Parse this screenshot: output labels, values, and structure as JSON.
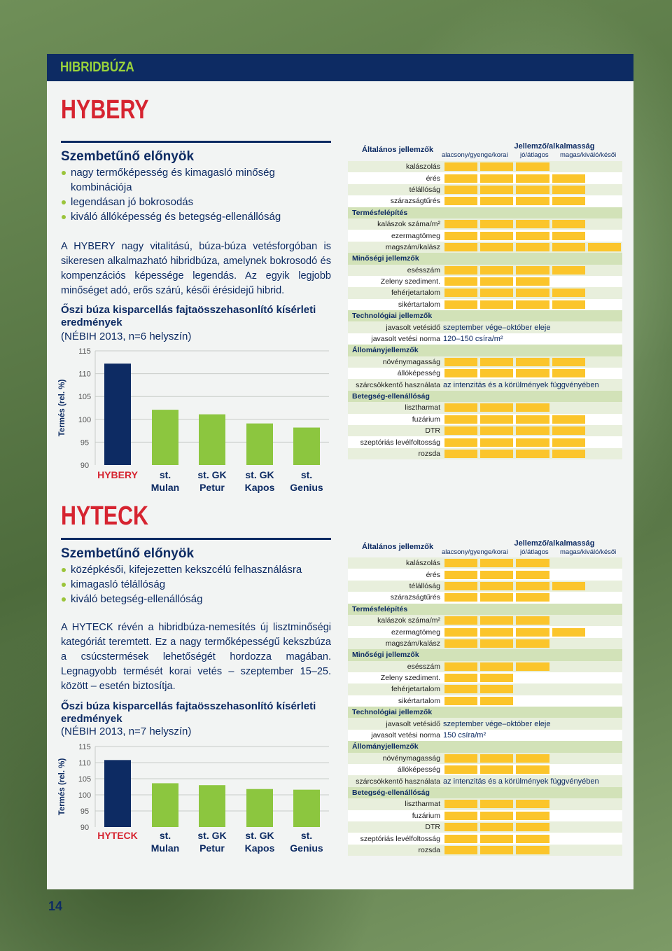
{
  "section_label": "HIBRIDBÚZA",
  "page_number": "14",
  "table_header": {
    "general": "Általános jellemzők",
    "characteristic": "Jellemző/alkalmasság",
    "scale": [
      "alacsony/gyenge/korai",
      "jó/átlagos",
      "magas/kiváló/késői"
    ]
  },
  "colors": {
    "navy": "#0d2b63",
    "red": "#d62430",
    "green": "#8cc63f",
    "yellow": "#fbc52b"
  },
  "products": [
    {
      "name": "HYBERY",
      "advantages_title": "Szembetűnő előnyök",
      "advantages": [
        "nagy termőképesség és kimagasló minőség kombinációja",
        "legendásan jó bokrosodás",
        "kiváló állóképesség és betegség-ellenállóság"
      ],
      "description": "A HYBERY nagy vitalitású, búza-búza vetésforgóban is sikeresen alkalmazható hibridbúza, amelynek bokrosodó és kompenzációs képessége legendás. Az egyik legjobb minőséget adó, erős szárú, késői érésidejű hibrid.",
      "chart_title": "Őszi búza kisparcellás fajtaösszehasonlító kísérleti eredmények",
      "chart_subtitle": "(NÉBIH 2013, n=6 helyszín)",
      "traits": [
        {
          "label": "kalászolás",
          "level": 3
        },
        {
          "label": "érés",
          "level": 4
        },
        {
          "label": "télállóság",
          "level": 4
        },
        {
          "label": "szárazságtűrés",
          "level": 4
        },
        {
          "label": "Termésfelépítés",
          "section": true
        },
        {
          "label": "kalászok száma/m²",
          "level": 4
        },
        {
          "label": "ezermagtömeg",
          "level": 4
        },
        {
          "label": "magszám/kalász",
          "level": 5
        },
        {
          "label": "Minőségi jellemzők",
          "section": true
        },
        {
          "label": "esésszám",
          "level": 4
        },
        {
          "label": "Zeleny szediment.",
          "level": 3
        },
        {
          "label": "fehérjetartalom",
          "level": 4
        },
        {
          "label": "sikértartalom",
          "level": 4
        },
        {
          "label": "Technológiai jellemzők",
          "section": true
        },
        {
          "label": "javasolt vetésidő",
          "text": "szeptember vége–október eleje"
        },
        {
          "label": "javasolt vetési norma",
          "text": "120–150 csíra/m²"
        },
        {
          "label": "Állományjellemzők",
          "section": true
        },
        {
          "label": "növénymagasság",
          "level": 4
        },
        {
          "label": "állóképesség",
          "level": 4
        },
        {
          "label": "szárcsökkentő használata",
          "text": "az intenzitás és a körülmények függvényében"
        },
        {
          "label": "Betegség-ellenállóság",
          "section": true
        },
        {
          "label": "lisztharmat",
          "level": 3
        },
        {
          "label": "fuzárium",
          "level": 4
        },
        {
          "label": "DTR",
          "level": 4
        },
        {
          "label": "szeptóriás levélfoltosság",
          "level": 4
        },
        {
          "label": "rozsda",
          "level": 4
        }
      ]
    },
    {
      "name": "HYTECK",
      "advantages_title": "Szembetűnő előnyök",
      "advantages": [
        "középkésői, kifejezetten kekszcélú felhasználásra",
        "kimagasló télállóság",
        "kiváló betegség-ellenállóság"
      ],
      "description": "A HYTECK révén a hibridbúza-nemesítés új lisztminőségi kategóriát teremtett. Ez a nagy termőképességű kekszbúza a csúcstermések lehetőségét hordozza magában. Legnagyobb termését korai vetés – szeptember 15–25. között – esetén biztosítja.",
      "chart_title": "Őszi búza kisparcellás fajtaösszehasonlító kísérleti eredmények",
      "chart_subtitle": "(NÉBIH 2013, n=7 helyszín)",
      "traits": [
        {
          "label": "kalászolás",
          "level": 3
        },
        {
          "label": "érés",
          "level": 3
        },
        {
          "label": "télállóság",
          "level": 4
        },
        {
          "label": "szárazságtűrés",
          "level": 3
        },
        {
          "label": "Termésfelépítés",
          "section": true
        },
        {
          "label": "kalászok száma/m²",
          "level": 3
        },
        {
          "label": "ezermagtömeg",
          "level": 4
        },
        {
          "label": "magszám/kalász",
          "level": 3
        },
        {
          "label": "Minőségi jellemzők",
          "section": true
        },
        {
          "label": "esésszám",
          "level": 3
        },
        {
          "label": "Zeleny szediment.",
          "level": 2
        },
        {
          "label": "fehérjetartalom",
          "level": 2
        },
        {
          "label": "sikértartalom",
          "level": 2
        },
        {
          "label": "Technológiai jellemzők",
          "section": true
        },
        {
          "label": "javasolt vetésidő",
          "text": "szeptember vége–október eleje"
        },
        {
          "label": "javasolt vetési norma",
          "text": "150 csíra/m²"
        },
        {
          "label": "Állományjellemzők",
          "section": true
        },
        {
          "label": "növénymagasság",
          "level": 3
        },
        {
          "label": "állóképesség",
          "level": 3
        },
        {
          "label": "szárcsökkentő használata",
          "text": "az intenzitás és a körülmények függvényében"
        },
        {
          "label": "Betegség-ellenállóság",
          "section": true
        },
        {
          "label": "lisztharmat",
          "level": 3
        },
        {
          "label": "fuzárium",
          "level": 3
        },
        {
          "label": "DTR",
          "level": 3
        },
        {
          "label": "szeptóriás levélfoltosság",
          "level": 3
        },
        {
          "label": "rozsda",
          "level": 3
        }
      ]
    }
  ],
  "chart_data": [
    {
      "type": "bar",
      "ylabel": "Termés (rel. %)",
      "ylim": [
        90,
        115
      ],
      "yticks": [
        90,
        95,
        100,
        105,
        110,
        115
      ],
      "categories": [
        [
          "HYBERY"
        ],
        [
          "st.",
          "Mulan"
        ],
        [
          "st. GK",
          "Petur"
        ],
        [
          "st. GK",
          "Kapos"
        ],
        [
          "st.",
          "Genius"
        ]
      ],
      "values": [
        112.2,
        102.1,
        101.1,
        99.1,
        98.2
      ]
    },
    {
      "type": "bar",
      "ylabel": "Termés (rel. %)",
      "ylim": [
        90,
        115
      ],
      "yticks": [
        90,
        95,
        100,
        105,
        110,
        115
      ],
      "categories": [
        [
          "HYTECK"
        ],
        [
          "st.",
          "Mulan"
        ],
        [
          "st. GK",
          "Petur"
        ],
        [
          "st. GK",
          "Kapos"
        ],
        [
          "st.",
          "Genius"
        ]
      ],
      "values": [
        110.8,
        103.6,
        103.0,
        101.8,
        101.6
      ]
    }
  ]
}
